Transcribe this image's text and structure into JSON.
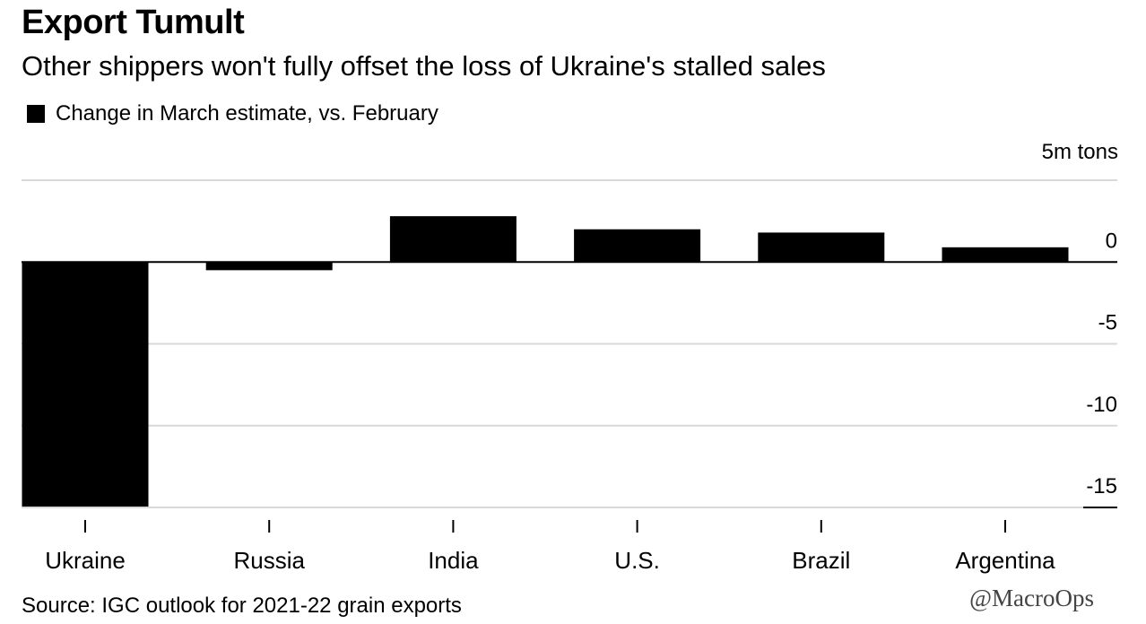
{
  "header": {
    "title": "Export Tumult",
    "subtitle": "Other shippers won't fully offset the loss of Ukraine's stalled sales",
    "legend_label": "Change in March estimate, vs. February",
    "unit_label": "5m tons"
  },
  "footer": {
    "source": "Source: IGC outlook for 2021-22 grain exports",
    "watermark": "@MacroOps"
  },
  "colors": {
    "bar": "#000000",
    "grid": "#d9d9d9",
    "axis": "#000000"
  },
  "chart_data": {
    "type": "bar",
    "title": "Export Tumult",
    "subtitle": "Other shippers won't fully offset the loss of Ukraine's stalled sales",
    "xlabel": "",
    "ylabel": "",
    "unit": "m tons",
    "categories": [
      "Ukraine",
      "Russia",
      "India",
      "U.S.",
      "Brazil",
      "Argentina"
    ],
    "series": [
      {
        "name": "Change in March estimate, vs. February",
        "values": [
          -15,
          -0.5,
          2.8,
          2.0,
          1.8,
          0.9
        ]
      }
    ],
    "ylim": [
      -15,
      5
    ],
    "yticks": [
      5,
      0,
      -5,
      -10,
      -15
    ],
    "ytick_labels": [
      "",
      "0",
      "-5",
      "-10",
      "-15"
    ],
    "grid": true,
    "legend_position": "top-left"
  }
}
